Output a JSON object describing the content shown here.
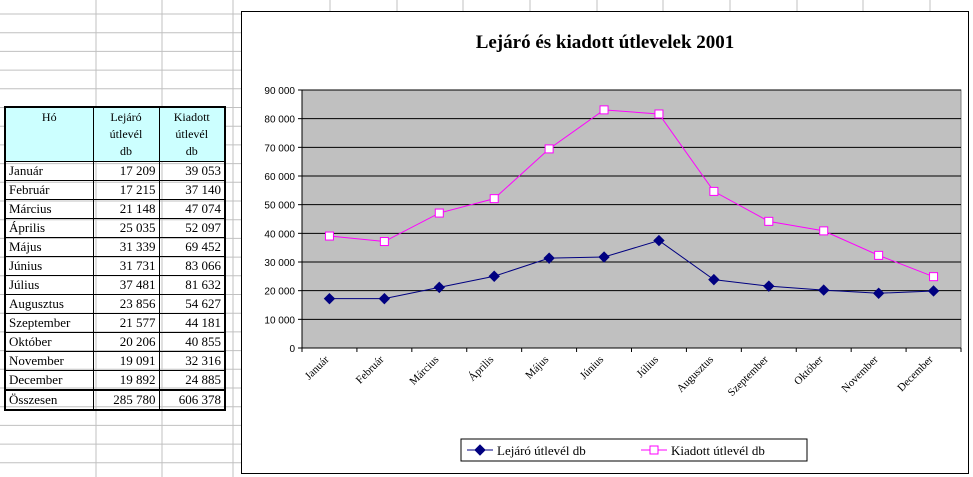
{
  "table": {
    "headers": [
      "Hó",
      "Lejáró\nútlevél\ndb",
      "Kiadott\nútlevél\ndb"
    ],
    "rows": [
      {
        "month": "Január",
        "lejaro": "17 209",
        "kiadott": "39 053"
      },
      {
        "month": "Február",
        "lejaro": "17 215",
        "kiadott": "37 140"
      },
      {
        "month": "Március",
        "lejaro": "21 148",
        "kiadott": "47 074"
      },
      {
        "month": "Április",
        "lejaro": "25 035",
        "kiadott": "52 097"
      },
      {
        "month": "Május",
        "lejaro": "31 339",
        "kiadott": "69 452"
      },
      {
        "month": "Június",
        "lejaro": "31 731",
        "kiadott": "83 066"
      },
      {
        "month": "Július",
        "lejaro": "37 481",
        "kiadott": "81 632"
      },
      {
        "month": "Augusztus",
        "lejaro": "23 856",
        "kiadott": "54 627"
      },
      {
        "month": "Szeptember",
        "lejaro": "21 577",
        "kiadott": "44 181"
      },
      {
        "month": "Október",
        "lejaro": "20 206",
        "kiadott": "40 855"
      },
      {
        "month": "November",
        "lejaro": "19 091",
        "kiadott": "32 316"
      },
      {
        "month": "December",
        "lejaro": "19 892",
        "kiadott": "24 885"
      }
    ],
    "total": {
      "label": "Összesen",
      "lejaro": "285 780",
      "kiadott": "606 378"
    }
  },
  "chart_data": {
    "type": "line",
    "title": "Lejáró és kiadott útlevelek 2001",
    "xlabel": "",
    "ylabel": "",
    "categories": [
      "Január",
      "Február",
      "Március",
      "Április",
      "Május",
      "Június",
      "Július",
      "Augusztus",
      "Szeptember",
      "Október",
      "November",
      "December"
    ],
    "series": [
      {
        "name": "Lejáró útlevél db",
        "color": "#000080",
        "marker": "filled-diamond",
        "values": [
          17209,
          17215,
          21148,
          25035,
          31339,
          31731,
          37481,
          23856,
          21577,
          20206,
          19091,
          19892
        ]
      },
      {
        "name": "Kiadott útlevél db",
        "color": "#ff00ff",
        "marker": "open-square",
        "values": [
          39053,
          37140,
          47074,
          52097,
          69452,
          83066,
          81632,
          54627,
          44181,
          40855,
          32316,
          24885
        ]
      }
    ],
    "ylim": [
      0,
      90000
    ],
    "ytick_labels": [
      "0",
      "10 000",
      "20 000",
      "30 000",
      "40 000",
      "50 000",
      "60 000",
      "70 000",
      "80 000",
      "90 000"
    ],
    "plot_background": "#c0c0c0",
    "grid": true,
    "legend_position": "bottom"
  },
  "colors": {
    "header_fill": "#ccffff",
    "sheet_gridline": "#c0c0c0"
  }
}
